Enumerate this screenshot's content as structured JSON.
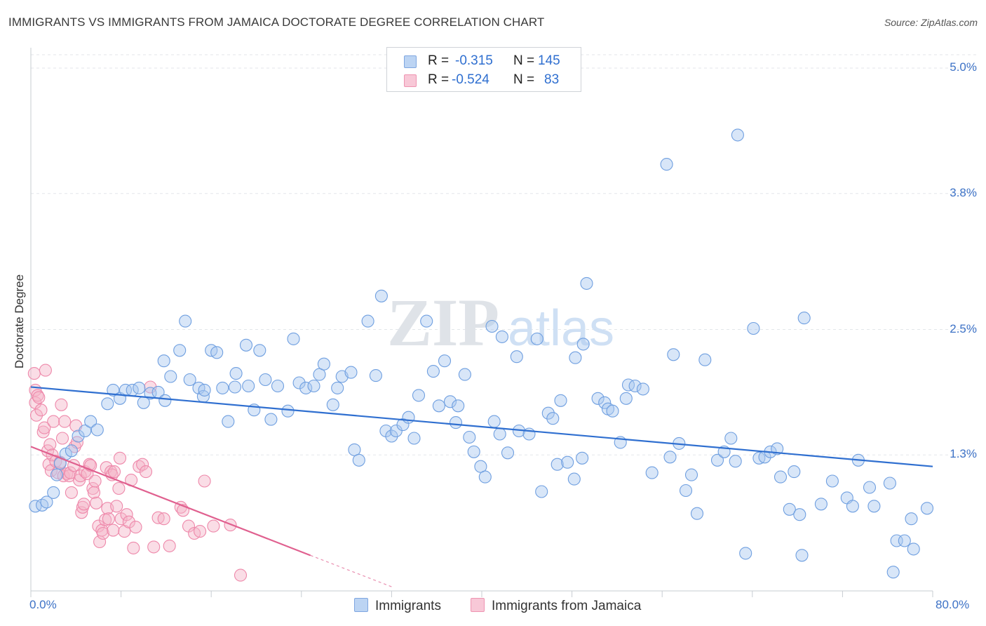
{
  "title": "IMMIGRANTS VS IMMIGRANTS FROM JAMAICA DOCTORATE DEGREE CORRELATION CHART",
  "source": "Source: ZipAtlas.com",
  "watermark": {
    "zip": "ZIP",
    "atlas": "atlas"
  },
  "legend": {
    "series1": {
      "r_label": "R =",
      "r_value": "-0.315",
      "n_label": "N =",
      "n_value": "145",
      "color": "#a9c7ef"
    },
    "series2": {
      "r_label": "R =",
      "r_value": "-0.524",
      "n_label": "N =",
      "n_value": "83",
      "color": "#f5b3c8"
    }
  },
  "bottom_legend": {
    "series1_label": "Immigrants",
    "series2_label": "Immigrants from Jamaica"
  },
  "chart_data": {
    "type": "scatter",
    "xlabel": "",
    "ylabel": "Doctorate Degree",
    "xlim": [
      0,
      80
    ],
    "ylim": [
      0,
      5.0
    ],
    "x_tick_labels": {
      "min": "0.0%",
      "max": "80.0%"
    },
    "y_ticks": [
      {
        "value": 1.3,
        "label": "1.3%"
      },
      {
        "value": 2.5,
        "label": "2.5%"
      },
      {
        "value": 3.8,
        "label": "3.8%"
      },
      {
        "value": 5.0,
        "label": "5.0%"
      }
    ],
    "series": [
      {
        "name": "Immigrants",
        "color": "#6f9fe0",
        "fill": "#a9c7ef",
        "trend": {
          "x1": 0.0,
          "y1": 1.95,
          "x2": 80.0,
          "y2": 1.19,
          "color": "#2f6fd0"
        },
        "points": [
          [
            0.4,
            0.81
          ],
          [
            1.0,
            0.82
          ],
          [
            1.4,
            0.85
          ],
          [
            2.0,
            0.94
          ],
          [
            2.3,
            1.11
          ],
          [
            2.6,
            1.22
          ],
          [
            3.1,
            1.31
          ],
          [
            3.6,
            1.34
          ],
          [
            4.2,
            1.48
          ],
          [
            4.8,
            1.53
          ],
          [
            5.3,
            1.62
          ],
          [
            5.9,
            1.54
          ],
          [
            6.8,
            1.79
          ],
          [
            7.3,
            1.92
          ],
          [
            7.9,
            1.84
          ],
          [
            8.4,
            1.92
          ],
          [
            9.0,
            1.92
          ],
          [
            9.6,
            1.94
          ],
          [
            10.0,
            1.8
          ],
          [
            10.6,
            1.89
          ],
          [
            11.3,
            1.9
          ],
          [
            11.8,
            2.2
          ],
          [
            11.9,
            1.82
          ],
          [
            12.4,
            2.05
          ],
          [
            13.2,
            2.3
          ],
          [
            13.7,
            2.58
          ],
          [
            14.1,
            2.02
          ],
          [
            14.9,
            1.94
          ],
          [
            15.3,
            1.86
          ],
          [
            15.4,
            1.92
          ],
          [
            16.0,
            2.3
          ],
          [
            16.5,
            2.28
          ],
          [
            17.0,
            1.94
          ],
          [
            17.5,
            1.62
          ],
          [
            18.1,
            1.95
          ],
          [
            18.2,
            2.08
          ],
          [
            19.1,
            2.35
          ],
          [
            19.3,
            1.96
          ],
          [
            19.8,
            1.73
          ],
          [
            20.3,
            2.3
          ],
          [
            20.8,
            2.02
          ],
          [
            21.3,
            1.64
          ],
          [
            21.9,
            1.96
          ],
          [
            22.8,
            1.72
          ],
          [
            23.3,
            2.41
          ],
          [
            23.8,
            1.99
          ],
          [
            24.4,
            1.94
          ],
          [
            25.1,
            1.96
          ],
          [
            25.6,
            2.07
          ],
          [
            26.0,
            2.17
          ],
          [
            26.8,
            1.78
          ],
          [
            27.2,
            1.94
          ],
          [
            27.6,
            2.05
          ],
          [
            28.4,
            2.09
          ],
          [
            28.7,
            1.35
          ],
          [
            29.1,
            1.25
          ],
          [
            29.9,
            2.58
          ],
          [
            30.6,
            2.06
          ],
          [
            31.1,
            2.82
          ],
          [
            31.5,
            1.53
          ],
          [
            32.0,
            1.48
          ],
          [
            32.4,
            1.53
          ],
          [
            33.0,
            1.59
          ],
          [
            33.5,
            1.66
          ],
          [
            34.0,
            1.46
          ],
          [
            34.4,
            1.87
          ],
          [
            35.1,
            2.58
          ],
          [
            35.7,
            2.1
          ],
          [
            36.2,
            1.77
          ],
          [
            36.7,
            2.2
          ],
          [
            37.2,
            1.81
          ],
          [
            37.7,
            1.61
          ],
          [
            37.9,
            1.77
          ],
          [
            38.5,
            2.07
          ],
          [
            38.9,
            1.47
          ],
          [
            39.3,
            1.33
          ],
          [
            39.9,
            1.19
          ],
          [
            40.3,
            1.09
          ],
          [
            40.9,
            2.53
          ],
          [
            41.1,
            1.62
          ],
          [
            41.6,
            1.5
          ],
          [
            41.8,
            2.43
          ],
          [
            42.3,
            1.32
          ],
          [
            43.1,
            2.24
          ],
          [
            43.3,
            1.53
          ],
          [
            44.2,
            1.5
          ],
          [
            44.9,
            2.41
          ],
          [
            45.3,
            0.95
          ],
          [
            45.9,
            1.7
          ],
          [
            46.3,
            1.65
          ],
          [
            46.7,
            1.21
          ],
          [
            47.0,
            1.82
          ],
          [
            47.6,
            1.23
          ],
          [
            48.2,
            1.07
          ],
          [
            48.3,
            2.23
          ],
          [
            48.9,
            1.27
          ],
          [
            49.0,
            2.36
          ],
          [
            49.3,
            2.94
          ],
          [
            50.3,
            1.84
          ],
          [
            50.9,
            1.8
          ],
          [
            51.2,
            1.74
          ],
          [
            51.6,
            1.72
          ],
          [
            52.3,
            1.42
          ],
          [
            52.8,
            1.84
          ],
          [
            53.0,
            1.97
          ],
          [
            53.6,
            1.96
          ],
          [
            54.3,
            1.93
          ],
          [
            55.1,
            1.13
          ],
          [
            56.4,
            4.08
          ],
          [
            56.7,
            1.28
          ],
          [
            57.0,
            2.26
          ],
          [
            57.5,
            1.41
          ],
          [
            58.1,
            0.96
          ],
          [
            58.6,
            1.11
          ],
          [
            59.1,
            0.74
          ],
          [
            59.8,
            2.21
          ],
          [
            60.9,
            1.25
          ],
          [
            61.5,
            1.33
          ],
          [
            62.1,
            1.46
          ],
          [
            62.5,
            1.24
          ],
          [
            62.7,
            4.36
          ],
          [
            63.4,
            0.36
          ],
          [
            64.1,
            2.51
          ],
          [
            64.6,
            1.27
          ],
          [
            65.1,
            1.28
          ],
          [
            65.6,
            1.33
          ],
          [
            66.2,
            1.36
          ],
          [
            66.5,
            1.09
          ],
          [
            67.3,
            0.78
          ],
          [
            67.7,
            1.14
          ],
          [
            68.2,
            0.73
          ],
          [
            68.4,
            0.34
          ],
          [
            68.6,
            2.61
          ],
          [
            70.1,
            0.83
          ],
          [
            71.1,
            1.05
          ],
          [
            72.4,
            0.89
          ],
          [
            72.9,
            0.81
          ],
          [
            73.4,
            1.25
          ],
          [
            74.4,
            0.99
          ],
          [
            74.8,
            0.81
          ],
          [
            76.2,
            1.03
          ],
          [
            76.5,
            0.18
          ],
          [
            76.8,
            0.48
          ],
          [
            77.5,
            0.48
          ],
          [
            78.1,
            0.69
          ],
          [
            79.5,
            0.79
          ],
          [
            78.3,
            0.4
          ]
        ]
      },
      {
        "name": "Immigrants from Jamaica",
        "color": "#ee88aa",
        "fill": "#f5b3c8",
        "trend": {
          "x1": 0.0,
          "y1": 1.38,
          "x2": 24.8,
          "y2": 0.34,
          "color": "#e0608f"
        },
        "trend_dashed": {
          "x1": 24.8,
          "y1": 0.34,
          "x2": 32.0,
          "y2": 0.04
        },
        "points": [
          [
            0.3,
            2.08
          ],
          [
            0.4,
            1.8
          ],
          [
            0.4,
            1.92
          ],
          [
            0.5,
            1.68
          ],
          [
            0.6,
            1.87
          ],
          [
            0.7,
            1.85
          ],
          [
            0.9,
            1.73
          ],
          [
            1.1,
            1.52
          ],
          [
            1.2,
            1.56
          ],
          [
            1.3,
            2.11
          ],
          [
            1.5,
            1.34
          ],
          [
            1.6,
            1.21
          ],
          [
            1.7,
            1.4
          ],
          [
            1.8,
            1.15
          ],
          [
            1.9,
            1.3
          ],
          [
            2.0,
            1.62
          ],
          [
            2.2,
            1.24
          ],
          [
            2.4,
            1.13
          ],
          [
            2.6,
            1.23
          ],
          [
            2.7,
            1.78
          ],
          [
            2.8,
            1.46
          ],
          [
            2.9,
            1.1
          ],
          [
            3.0,
            1.62
          ],
          [
            3.2,
            1.12
          ],
          [
            3.4,
            1.1
          ],
          [
            3.5,
            1.13
          ],
          [
            3.6,
            0.94
          ],
          [
            3.8,
            1.2
          ],
          [
            3.9,
            1.38
          ],
          [
            4.0,
            1.58
          ],
          [
            4.1,
            1.42
          ],
          [
            4.3,
            1.06
          ],
          [
            4.4,
            1.1
          ],
          [
            4.5,
            0.75
          ],
          [
            4.6,
            0.8
          ],
          [
            4.7,
            0.83
          ],
          [
            4.8,
            1.14
          ],
          [
            5.0,
            1.12
          ],
          [
            5.2,
            1.21
          ],
          [
            5.3,
            1.2
          ],
          [
            5.5,
            0.98
          ],
          [
            5.6,
            0.94
          ],
          [
            5.7,
            1.05
          ],
          [
            5.8,
            0.84
          ],
          [
            6.0,
            0.62
          ],
          [
            6.1,
            0.47
          ],
          [
            6.3,
            0.58
          ],
          [
            6.4,
            0.55
          ],
          [
            6.6,
            0.68
          ],
          [
            6.7,
            1.18
          ],
          [
            6.8,
            0.79
          ],
          [
            6.9,
            0.69
          ],
          [
            7.1,
            1.14
          ],
          [
            7.2,
            1.11
          ],
          [
            7.3,
            0.58
          ],
          [
            7.4,
            1.14
          ],
          [
            7.6,
            0.81
          ],
          [
            7.8,
            0.98
          ],
          [
            7.9,
            1.27
          ],
          [
            8.0,
            0.69
          ],
          [
            8.3,
            0.57
          ],
          [
            8.5,
            0.73
          ],
          [
            8.7,
            0.66
          ],
          [
            8.9,
            1.06
          ],
          [
            9.1,
            0.41
          ],
          [
            9.3,
            0.61
          ],
          [
            9.6,
            1.19
          ],
          [
            9.9,
            1.21
          ],
          [
            10.2,
            1.14
          ],
          [
            10.6,
            1.95
          ],
          [
            10.9,
            0.42
          ],
          [
            11.3,
            0.7
          ],
          [
            11.8,
            0.69
          ],
          [
            12.3,
            0.43
          ],
          [
            13.3,
            0.8
          ],
          [
            13.5,
            0.77
          ],
          [
            14.0,
            0.62
          ],
          [
            14.5,
            0.55
          ],
          [
            15.0,
            0.57
          ],
          [
            15.4,
            1.05
          ],
          [
            16.2,
            0.62
          ],
          [
            17.7,
            0.63
          ],
          [
            18.6,
            0.15
          ]
        ]
      }
    ]
  }
}
